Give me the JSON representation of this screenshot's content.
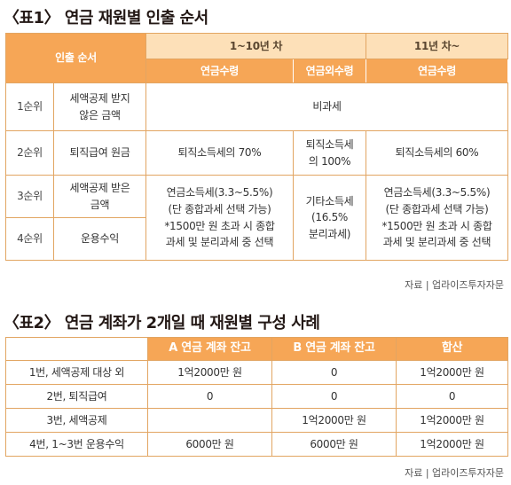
{
  "table1": {
    "title": "〈표1〉 연금 재원별 인출 순서",
    "header": {
      "order": "인출 순서",
      "period1": "1~10년 차",
      "period2": "11년 차~",
      "col_pension": "연금수령",
      "col_non_pension": "연금외수령",
      "col_pension2": "연금수령"
    },
    "rows": [
      {
        "rank": "1순위",
        "source": "세액공제 받지\n않은 금액",
        "value": "비과세"
      },
      {
        "rank": "2순위",
        "source": "퇴직급여 원금",
        "pension": "퇴직소득세의 70%",
        "non_pension": "퇴직소득세\n의 100%",
        "pension2": "퇴직소득세의 60%"
      },
      {
        "rank": "3순위",
        "source": "세액공제 받은\n금액"
      },
      {
        "rank": "4순위",
        "source": "운용수익"
      }
    ],
    "merged_34": {
      "pension": "연금소득세(3.3~5.5%)\n(단 종합과세 선택 가능)\n*1500만 원 초과 시 종합\n과세 및 분리과세 중 선택",
      "non_pension": "기타소득세\n(16.5%\n분리과세)",
      "pension2": "연금소득세(3.3~5.5%)\n(단 종합과세 선택 가능)\n*1500만 원 초과 시 종합\n과세 및 분리과세 중 선택"
    },
    "source": "자료 | 업라이즈투자자문"
  },
  "table2": {
    "title": "〈표2〉 연금 계좌가 2개일 때 재원별 구성 사례",
    "headers": [
      "",
      "A 연금 계좌 잔고",
      "B 연금 계좌 잔고",
      "합산"
    ],
    "rows": [
      {
        "label": "1번, 세액공제 대상 외",
        "a": "1억2000만 원",
        "b": "0",
        "sum": "1억2000만 원"
      },
      {
        "label": "2번, 퇴직급여",
        "a": "0",
        "b": "0",
        "sum": "0"
      },
      {
        "label": "3번, 세액공제",
        "a": "",
        "b": "1억2000만 원",
        "sum": "1억2000만 원"
      },
      {
        "label": "4번, 1~3번 운용수익",
        "a": "6000만 원",
        "b": "6000만 원",
        "sum": "1억2000만 원"
      }
    ],
    "source": "자료 | 업라이즈투자자문"
  },
  "colors": {
    "header_orange": "#f6a656",
    "header_light": "#fde0b8",
    "border": "#e2a562"
  }
}
